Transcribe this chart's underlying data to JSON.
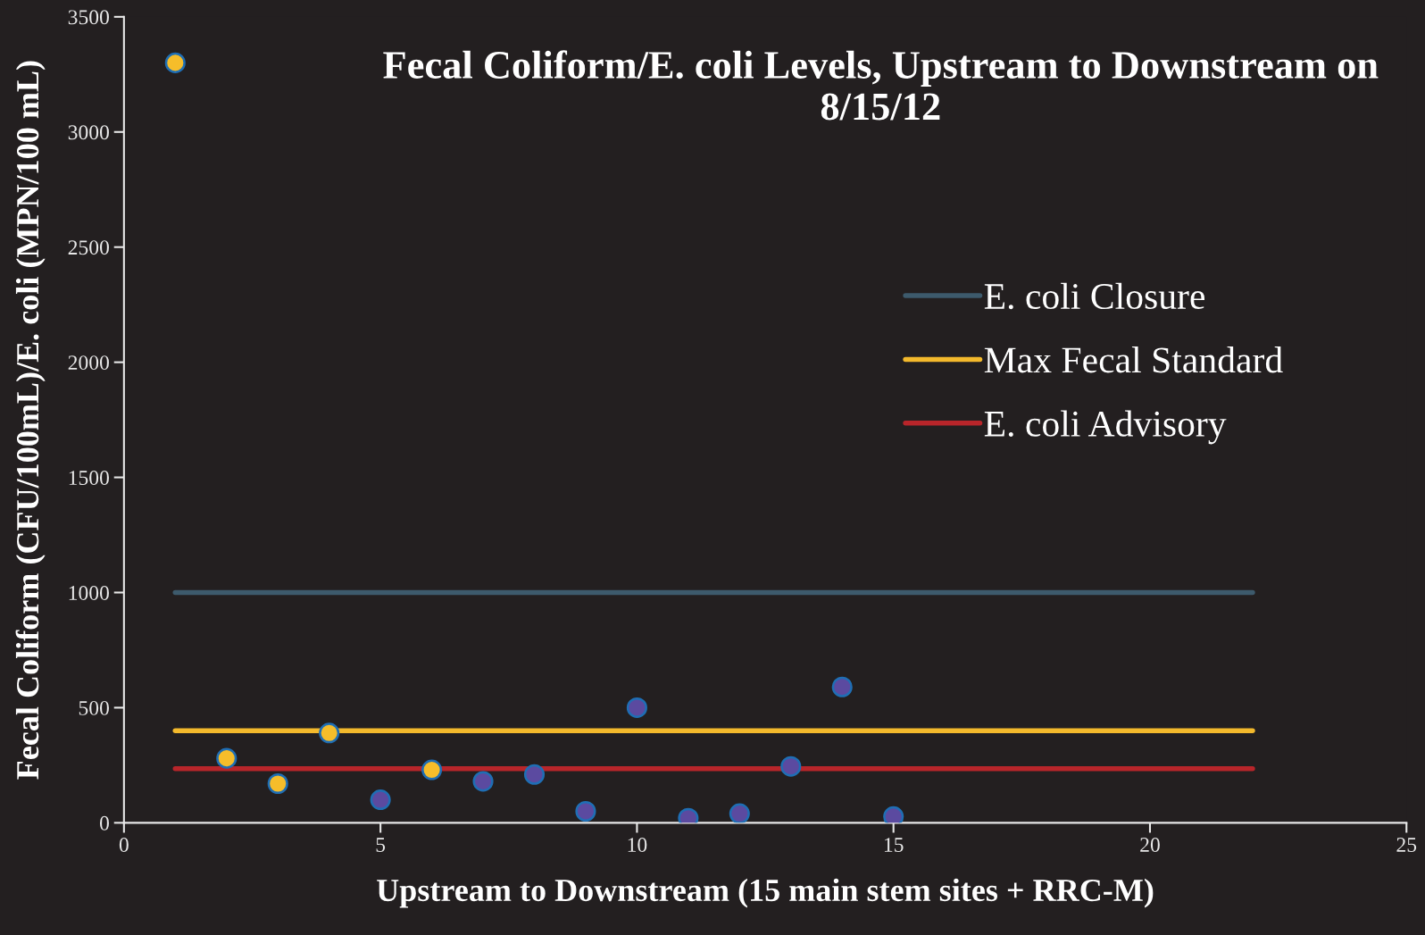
{
  "chart_data": {
    "type": "scatter",
    "title": "Fecal Coliform/E. coli Levels, Upstream to Downstream on 8/15/12",
    "xlabel": "Upstream to Downstream (15 main stem sites + RRC-M)",
    "ylabel": "Fecal Coliform (CFU/100mL)/E. coli (MPN/100 mL)",
    "xlim": [
      0,
      25
    ],
    "xticks": [
      0,
      5,
      10,
      15,
      20,
      25
    ],
    "ylim": [
      0,
      3500
    ],
    "yticks": [
      0,
      500,
      1000,
      1500,
      2000,
      2500,
      3000,
      3500
    ],
    "grid": false,
    "legend": "right",
    "series": [
      {
        "marker": "circle",
        "color": "#f6bd2a",
        "x": [
          1,
          2,
          3,
          4,
          6
        ],
        "values": [
          3300,
          280,
          170,
          390,
          230
        ]
      },
      {
        "marker": "circle",
        "color": "#5b4aa0",
        "x": [
          5,
          7,
          8,
          9,
          10,
          11,
          12,
          13,
          14,
          15
        ],
        "values": [
          100,
          180,
          210,
          50,
          500,
          20,
          40,
          245,
          590,
          27
        ]
      },
      {
        "type": "line",
        "name": "E. coli Closure",
        "color": "#3d5a6c",
        "x": [
          1,
          22
        ],
        "values": [
          1000,
          1000
        ]
      },
      {
        "type": "line",
        "name": "Max Fecal Standard",
        "color": "#f3b92c",
        "x": [
          1,
          22
        ],
        "values": [
          400,
          400
        ]
      },
      {
        "type": "line",
        "name": "E. coli Advisory",
        "color": "#b8252a",
        "x": [
          1,
          22
        ],
        "values": [
          235,
          235
        ]
      }
    ]
  }
}
